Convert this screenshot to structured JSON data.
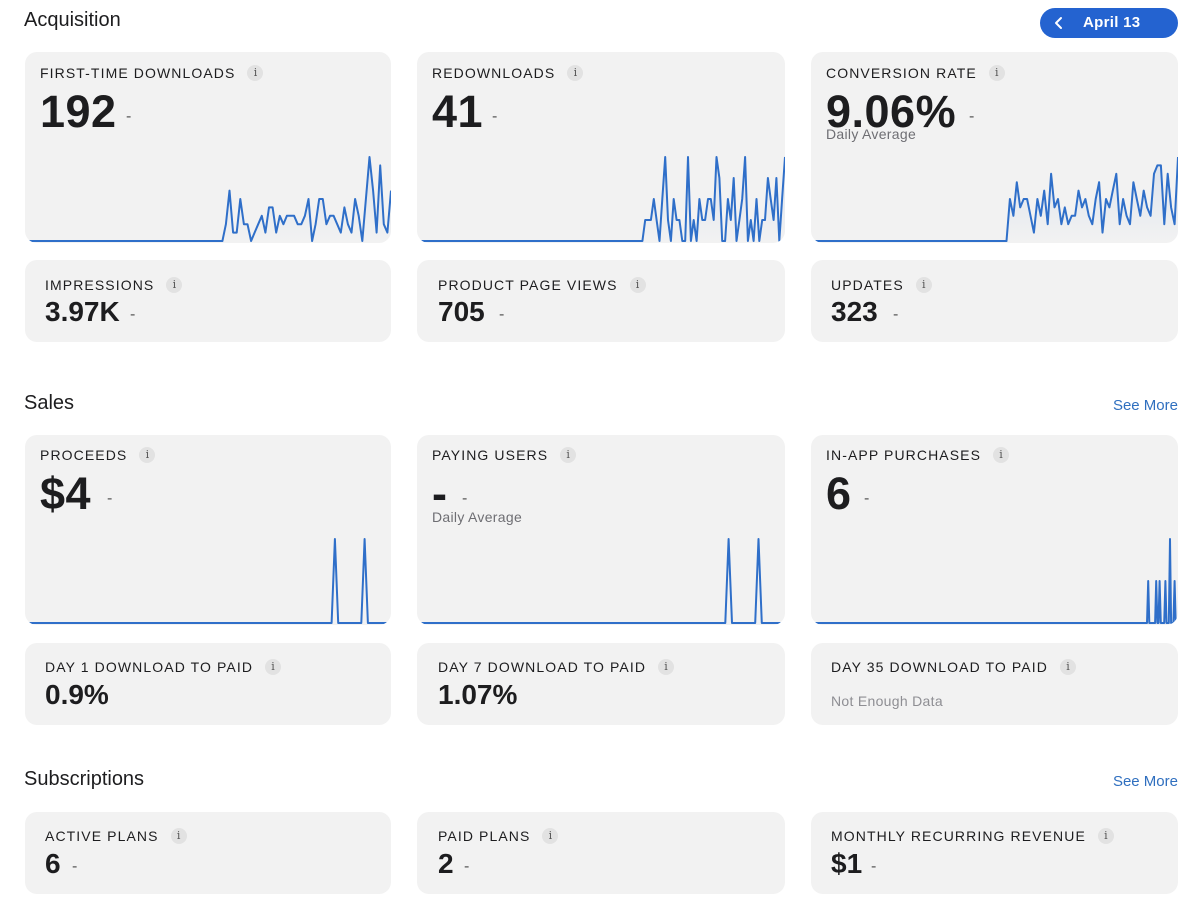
{
  "header": {
    "date_label": "April 13"
  },
  "acquisition": {
    "title": "Acquisition",
    "first_time_downloads": {
      "label": "FIRST-TIME DOWNLOADS",
      "value": "192",
      "change": "-",
      "series": [
        0,
        0,
        0,
        0,
        0,
        0,
        0,
        0,
        0,
        0,
        0,
        0,
        0,
        0,
        0,
        0,
        0,
        0,
        0,
        0,
        0,
        0,
        0,
        0,
        0,
        0,
        0,
        0,
        0,
        0,
        0,
        0,
        0,
        0,
        0,
        0,
        0,
        0,
        0,
        0,
        0,
        0,
        0,
        0,
        0,
        0,
        0,
        0,
        0,
        0,
        0,
        0,
        0,
        0,
        0,
        0,
        2,
        6,
        1,
        1,
        5,
        2,
        2,
        0,
        1,
        2,
        3,
        1,
        4,
        4,
        1,
        3,
        2,
        3,
        3,
        3,
        2,
        2,
        3,
        5,
        0,
        2,
        5,
        5,
        2,
        3,
        3,
        2,
        1,
        4,
        2,
        1,
        5,
        3,
        0,
        5,
        10,
        6,
        1,
        9,
        2,
        1,
        6
      ]
    },
    "redownloads": {
      "label": "REDOWNLOADS",
      "value": "41",
      "change": "-",
      "series": [
        0,
        0,
        0,
        0,
        0,
        0,
        0,
        0,
        0,
        0,
        0,
        0,
        0,
        0,
        0,
        0,
        0,
        0,
        0,
        0,
        0,
        0,
        0,
        0,
        0,
        0,
        0,
        0,
        0,
        0,
        0,
        0,
        0,
        0,
        0,
        0,
        0,
        0,
        0,
        0,
        0,
        0,
        0,
        0,
        0,
        0,
        0,
        0,
        0,
        0,
        0,
        0,
        0,
        0,
        0,
        0,
        0,
        0,
        0,
        0,
        0,
        0,
        0,
        0,
        0,
        0,
        0,
        0,
        0,
        0,
        0,
        0,
        0,
        0,
        0,
        0,
        0,
        0,
        0,
        0,
        1,
        1,
        1,
        2,
        1,
        0,
        2,
        4,
        1,
        0,
        2,
        1,
        1,
        0,
        0,
        4,
        0,
        1,
        0,
        2,
        1,
        1,
        2,
        2,
        1,
        4,
        3,
        0,
        0,
        2,
        1,
        3,
        0,
        1,
        2,
        4,
        0,
        1,
        0,
        2,
        0,
        1,
        1,
        3,
        2,
        1,
        3,
        0,
        2,
        4
      ]
    },
    "conversion_rate": {
      "label": "CONVERSION RATE",
      "value": "9.06%",
      "change": "-",
      "subtitle": "Daily Average",
      "series": [
        0,
        0,
        0,
        0,
        0,
        0,
        0,
        0,
        0,
        0,
        0,
        0,
        0,
        0,
        0,
        0,
        0,
        0,
        0,
        0,
        0,
        0,
        0,
        0,
        0,
        0,
        0,
        0,
        0,
        0,
        0,
        0,
        0,
        0,
        0,
        0,
        0,
        0,
        0,
        0,
        0,
        0,
        0,
        0,
        0,
        0,
        0,
        0,
        0,
        0,
        0,
        0,
        0,
        0,
        0,
        0,
        0,
        0,
        5,
        3,
        7,
        4,
        5,
        5,
        3,
        1,
        5,
        3,
        6,
        2,
        8,
        4,
        5,
        2,
        4,
        2,
        3,
        3,
        6,
        4,
        5,
        3,
        2,
        5,
        7,
        1,
        5,
        4,
        6,
        8,
        2,
        5,
        3,
        2,
        7,
        5,
        3,
        6,
        4,
        3,
        8,
        9,
        9,
        2,
        8,
        4,
        2,
        10
      ]
    },
    "impressions": {
      "label": "IMPRESSIONS",
      "value": "3.97K",
      "change": "-"
    },
    "product_page_views": {
      "label": "PRODUCT PAGE VIEWS",
      "value": "705",
      "change": "-"
    },
    "updates": {
      "label": "UPDATES",
      "value": "323",
      "change": "-"
    }
  },
  "sales": {
    "title": "Sales",
    "see_more": "See More",
    "proceeds": {
      "label": "PROCEEDS",
      "value": "$4",
      "change": "-",
      "series": [
        0,
        0,
        0,
        0,
        0,
        0,
        0,
        0,
        0,
        0,
        0,
        0,
        0,
        0,
        0,
        0,
        0,
        0,
        0,
        0,
        0,
        0,
        0,
        0,
        0,
        0,
        0,
        0,
        0,
        0,
        0,
        0,
        0,
        0,
        0,
        0,
        0,
        0,
        0,
        0,
        0,
        0,
        0,
        0,
        0,
        0,
        0,
        0,
        0,
        0,
        0,
        0,
        0,
        0,
        0,
        0,
        0,
        0,
        0,
        0,
        0,
        0,
        0,
        0,
        0,
        0,
        0,
        0,
        0,
        0,
        0,
        0,
        0,
        0,
        0,
        0,
        0,
        0,
        0,
        0,
        0,
        0,
        0,
        0,
        0,
        0,
        0,
        0,
        0,
        0,
        0,
        0,
        0,
        0,
        1,
        0,
        0,
        0,
        0,
        0,
        0,
        0,
        0,
        1,
        0,
        0,
        0,
        0,
        0,
        0,
        0,
        0
      ]
    },
    "paying_users": {
      "label": "PAYING USERS",
      "value": "-",
      "change": "-",
      "subtitle": "Daily Average",
      "series": [
        0,
        0,
        0,
        0,
        0,
        0,
        0,
        0,
        0,
        0,
        0,
        0,
        0,
        0,
        0,
        0,
        0,
        0,
        0,
        0,
        0,
        0,
        0,
        0,
        0,
        0,
        0,
        0,
        0,
        0,
        0,
        0,
        0,
        0,
        0,
        0,
        0,
        0,
        0,
        0,
        0,
        0,
        0,
        0,
        0,
        0,
        0,
        0,
        0,
        0,
        0,
        0,
        0,
        0,
        0,
        0,
        0,
        0,
        0,
        0,
        0,
        0,
        0,
        0,
        0,
        0,
        0,
        0,
        0,
        0,
        0,
        0,
        0,
        0,
        0,
        0,
        0,
        0,
        0,
        0,
        0,
        0,
        0,
        0,
        0,
        0,
        0,
        0,
        0,
        0,
        0,
        0,
        0,
        0,
        1,
        0,
        0,
        0,
        0,
        0,
        0,
        0,
        0,
        1,
        0,
        0,
        0,
        0,
        0,
        0,
        0,
        0
      ]
    },
    "in_app_purchases": {
      "label": "IN-APP PURCHASES",
      "value": "6",
      "change": "-",
      "series": [
        0,
        0,
        0,
        0,
        0,
        0,
        0,
        0,
        0,
        0,
        0,
        0,
        0,
        0,
        0,
        0,
        0,
        0,
        0,
        0,
        0,
        0,
        0,
        0,
        0,
        0,
        0,
        0,
        0,
        0,
        0,
        0,
        0,
        0,
        0,
        0,
        0,
        0,
        0,
        0,
        0,
        0,
        0,
        0,
        0,
        0,
        0,
        0,
        0,
        0,
        0,
        0,
        0,
        0,
        0,
        0,
        0,
        0,
        0,
        0,
        0,
        0,
        0,
        0,
        0,
        0,
        0,
        0,
        0,
        0,
        0,
        0,
        0,
        0,
        0,
        0,
        0,
        0,
        0,
        0,
        0,
        0,
        0,
        0,
        0,
        0,
        0,
        0,
        0,
        0,
        0,
        0,
        0,
        0,
        0,
        0,
        0,
        0,
        0,
        0,
        0,
        0,
        0,
        0,
        0,
        0,
        0,
        0,
        0,
        0,
        0,
        0,
        0,
        0,
        0,
        0,
        0,
        0,
        0,
        0,
        0,
        0,
        0,
        0,
        0,
        0,
        0,
        0,
        0,
        0,
        0,
        0,
        0,
        0,
        0,
        0,
        0,
        0,
        0,
        0,
        0,
        0,
        0,
        0,
        0,
        0,
        0,
        0,
        0,
        0,
        0,
        0,
        0,
        0,
        0,
        0,
        0,
        0,
        0,
        0,
        0,
        0,
        0,
        0,
        0,
        0,
        0,
        0,
        0,
        0,
        0,
        0,
        0,
        0,
        0,
        0,
        0,
        0,
        0,
        0,
        0,
        0,
        0,
        0,
        0,
        0,
        0,
        0,
        0,
        0,
        0,
        0,
        0,
        0,
        0,
        0,
        0,
        0,
        0,
        0,
        0,
        0,
        0,
        0,
        0,
        0,
        0,
        0,
        0,
        0,
        0,
        0,
        0,
        0,
        0,
        0,
        0,
        0,
        0,
        0,
        0,
        0,
        0,
        0,
        0,
        0,
        0,
        0,
        0,
        0,
        0,
        0,
        0,
        0,
        0,
        0,
        0,
        0,
        0,
        0,
        0,
        0,
        0,
        0,
        0,
        0,
        0,
        0,
        0,
        0,
        0,
        0,
        0,
        0,
        0,
        0,
        0,
        0,
        0,
        0,
        0,
        0,
        0,
        0,
        0,
        0,
        0,
        0,
        0,
        0,
        0,
        0,
        0,
        0,
        0,
        0,
        0,
        0,
        0,
        0,
        0,
        0,
        0,
        0,
        0,
        0,
        0,
        0,
        0,
        0,
        0,
        0,
        0,
        0,
        1,
        0,
        0,
        0,
        0,
        0,
        0,
        1,
        0,
        0,
        1,
        0,
        0,
        0,
        0,
        1,
        0,
        0,
        0,
        2,
        0,
        0,
        0,
        1,
        0,
        0,
        0
      ]
    },
    "day1": {
      "label": "DAY 1 DOWNLOAD TO PAID",
      "value": "0.9%"
    },
    "day7": {
      "label": "DAY 7 DOWNLOAD TO PAID",
      "value": "1.07%"
    },
    "day35": {
      "label": "DAY 35 DOWNLOAD TO PAID",
      "value": "Not Enough Data"
    }
  },
  "subscriptions": {
    "title": "Subscriptions",
    "see_more": "See More",
    "active_plans": {
      "label": "ACTIVE PLANS",
      "value": "6",
      "change": "-"
    },
    "paid_plans": {
      "label": "PAID PLANS",
      "value": "2",
      "change": "-"
    },
    "mrr": {
      "label": "MONTHLY RECURRING REVENUE",
      "value": "$1",
      "change": "-"
    }
  },
  "colors": {
    "accent": "#2463d0",
    "line": "#2f6fc9",
    "card": "#f2f2f2",
    "link": "#2f6fbf"
  },
  "icons": {
    "info": "info-icon",
    "back": "chevron-left-icon"
  }
}
